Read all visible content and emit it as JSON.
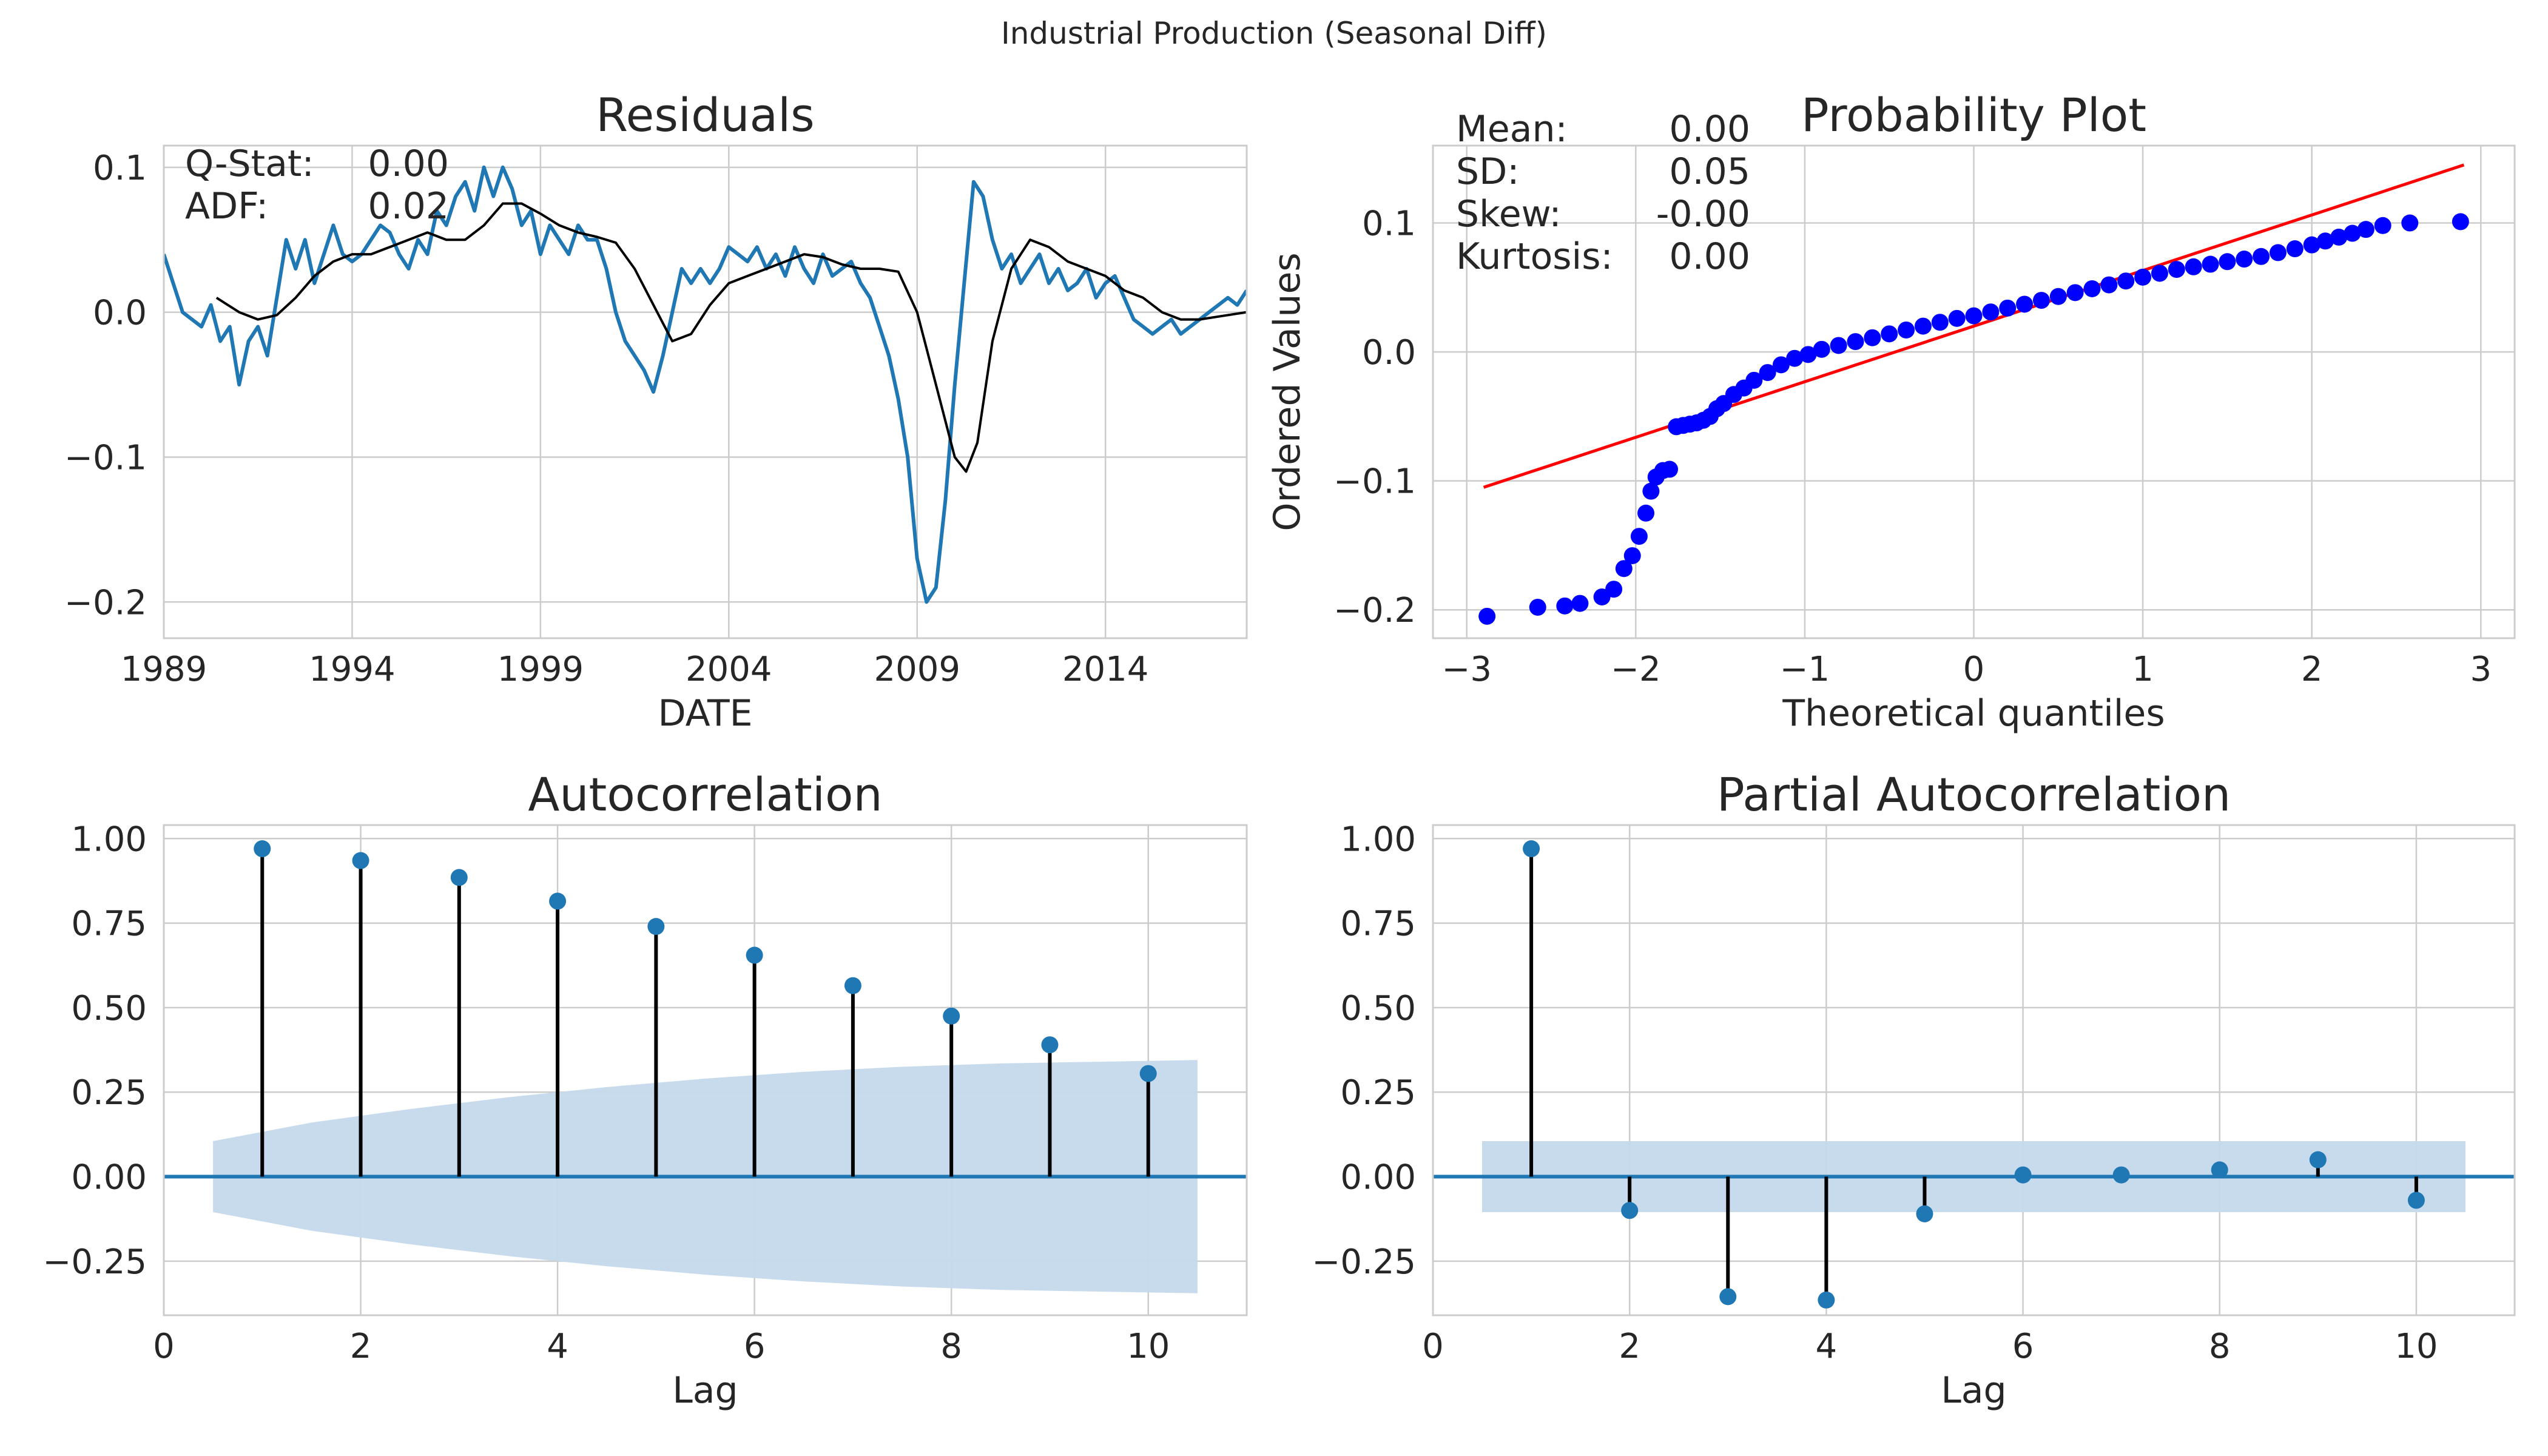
{
  "suptitle": "Industrial Production (Seasonal Diff)",
  "chart_data": [
    {
      "id": "residuals",
      "type": "line",
      "title": "Residuals",
      "xlabel": "DATE",
      "ylabel": "",
      "xlim": [
        1989.0,
        2017.75
      ],
      "ylim": [
        -0.225,
        0.115
      ],
      "xticks": [
        1989,
        1994,
        1999,
        2004,
        2009,
        2014
      ],
      "xticklabels": [
        "1989",
        "1994",
        "1999",
        "2004",
        "2009",
        "2014"
      ],
      "yticks": [
        -0.2,
        -0.1,
        0.0,
        0.1
      ],
      "yticklabels": [
        "−0.2",
        "−0.1",
        "0.0",
        "0.1"
      ],
      "grid": true,
      "stats": [
        {
          "label": "Q-Stat:",
          "value": "0.00"
        },
        {
          "label": "ADF:",
          "value": "0.02"
        }
      ],
      "series": [
        {
          "role": "residuals",
          "color": "#1f77b4",
          "x": [
            1989.0,
            1989.25,
            1989.5,
            1989.75,
            1990.0,
            1990.25,
            1990.5,
            1990.75,
            1991.0,
            1991.25,
            1991.5,
            1991.75,
            1992.0,
            1992.25,
            1992.5,
            1992.75,
            1993.0,
            1993.25,
            1993.5,
            1993.75,
            1994.0,
            1994.25,
            1994.5,
            1994.75,
            1995.0,
            1995.25,
            1995.5,
            1995.75,
            1996.0,
            1996.25,
            1996.5,
            1996.75,
            1997.0,
            1997.25,
            1997.5,
            1997.75,
            1998.0,
            1998.25,
            1998.5,
            1998.75,
            1999.0,
            1999.25,
            1999.5,
            1999.75,
            2000.0,
            2000.25,
            2000.5,
            2000.75,
            2001.0,
            2001.25,
            2001.5,
            2001.75,
            2002.0,
            2002.25,
            2002.5,
            2002.75,
            2003.0,
            2003.25,
            2003.5,
            2003.75,
            2004.0,
            2004.25,
            2004.5,
            2004.75,
            2005.0,
            2005.25,
            2005.5,
            2005.75,
            2006.0,
            2006.25,
            2006.5,
            2006.75,
            2007.0,
            2007.25,
            2007.5,
            2007.75,
            2008.0,
            2008.25,
            2008.5,
            2008.75,
            2009.0,
            2009.25,
            2009.5,
            2009.75,
            2010.0,
            2010.25,
            2010.5,
            2010.75,
            2011.0,
            2011.25,
            2011.5,
            2011.75,
            2012.0,
            2012.25,
            2012.5,
            2012.75,
            2013.0,
            2013.25,
            2013.5,
            2013.75,
            2014.0,
            2014.25,
            2014.5,
            2014.75,
            2015.0,
            2015.25,
            2015.5,
            2015.75,
            2016.0,
            2016.25,
            2016.5,
            2016.75,
            2017.0,
            2017.25,
            2017.5,
            2017.75
          ],
          "y": [
            0.04,
            0.02,
            0.0,
            -0.005,
            -0.01,
            0.005,
            -0.02,
            -0.01,
            -0.05,
            -0.02,
            -0.01,
            -0.03,
            0.01,
            0.05,
            0.03,
            0.05,
            0.02,
            0.04,
            0.06,
            0.04,
            0.035,
            0.04,
            0.05,
            0.06,
            0.055,
            0.04,
            0.03,
            0.05,
            0.04,
            0.07,
            0.06,
            0.08,
            0.09,
            0.07,
            0.1,
            0.08,
            0.1,
            0.085,
            0.06,
            0.07,
            0.04,
            0.06,
            0.05,
            0.04,
            0.06,
            0.05,
            0.05,
            0.03,
            0.0,
            -0.02,
            -0.03,
            -0.04,
            -0.055,
            -0.03,
            0.0,
            0.03,
            0.02,
            0.03,
            0.02,
            0.03,
            0.045,
            0.04,
            0.035,
            0.045,
            0.03,
            0.04,
            0.025,
            0.045,
            0.03,
            0.02,
            0.04,
            0.025,
            0.03,
            0.035,
            0.02,
            0.01,
            -0.01,
            -0.03,
            -0.06,
            -0.1,
            -0.17,
            -0.2,
            -0.19,
            -0.13,
            -0.05,
            0.02,
            0.09,
            0.08,
            0.05,
            0.03,
            0.04,
            0.02,
            0.03,
            0.04,
            0.02,
            0.03,
            0.015,
            0.02,
            0.03,
            0.01,
            0.02,
            0.025,
            0.01,
            -0.005,
            -0.01,
            -0.015,
            -0.01,
            -0.005,
            -0.015,
            -0.01,
            -0.005,
            0.0,
            0.005,
            0.01,
            0.005,
            0.015
          ]
        },
        {
          "role": "rolling-mean",
          "color": "#000000",
          "x": [
            1990.4,
            1991.0,
            1991.5,
            1992.0,
            1992.5,
            1993.0,
            1993.5,
            1994.0,
            1994.5,
            1995.0,
            1995.5,
            1996.0,
            1996.5,
            1997.0,
            1997.5,
            1998.0,
            1998.5,
            1999.0,
            1999.5,
            2000.0,
            2000.5,
            2001.0,
            2001.5,
            2002.0,
            2002.5,
            2003.0,
            2003.5,
            2004.0,
            2004.5,
            2005.0,
            2005.5,
            2006.0,
            2006.5,
            2007.0,
            2007.5,
            2008.0,
            2008.5,
            2009.0,
            2009.5,
            2010.0,
            2010.3,
            2010.6,
            2011.0,
            2011.5,
            2012.0,
            2012.5,
            2013.0,
            2013.5,
            2014.0,
            2014.5,
            2015.0,
            2015.5,
            2016.0,
            2016.5,
            2017.0,
            2017.75
          ],
          "y": [
            0.01,
            0.0,
            -0.005,
            -0.002,
            0.01,
            0.025,
            0.035,
            0.04,
            0.04,
            0.045,
            0.05,
            0.055,
            0.05,
            0.05,
            0.06,
            0.075,
            0.075,
            0.068,
            0.06,
            0.055,
            0.052,
            0.048,
            0.03,
            0.005,
            -0.02,
            -0.015,
            0.005,
            0.02,
            0.025,
            0.03,
            0.035,
            0.04,
            0.038,
            0.033,
            0.03,
            0.03,
            0.028,
            0.0,
            -0.05,
            -0.1,
            -0.11,
            -0.09,
            -0.02,
            0.03,
            0.05,
            0.045,
            0.035,
            0.03,
            0.025,
            0.015,
            0.01,
            0.0,
            -0.005,
            -0.005,
            -0.003,
            0.0
          ]
        }
      ]
    },
    {
      "id": "probability-plot",
      "type": "scatter",
      "title": "Probability Plot",
      "xlabel": "Theoretical quantiles",
      "ylabel": "Ordered Values",
      "xlim": [
        -3.2,
        3.2
      ],
      "ylim": [
        -0.222,
        0.16
      ],
      "xticks": [
        -3,
        -2,
        -1,
        0,
        1,
        2,
        3
      ],
      "xticklabels": [
        "−3",
        "−2",
        "−1",
        "0",
        "1",
        "2",
        "3"
      ],
      "yticks": [
        -0.2,
        -0.1,
        0.0,
        0.1
      ],
      "yticklabels": [
        "−0.2",
        "−0.1",
        "0.0",
        "0.1"
      ],
      "grid": true,
      "stats": [
        {
          "label": "Mean:",
          "value": "0.00"
        },
        {
          "label": "SD:",
          "value": "0.05"
        },
        {
          "label": "Skew:",
          "value": "-0.00"
        },
        {
          "label": "Kurtosis:",
          "value": "0.00"
        }
      ],
      "points_color": "#0000ff",
      "line_color": "#ff0000",
      "fit_line": {
        "x": [
          -2.9,
          2.9
        ],
        "y": [
          -0.105,
          0.145
        ]
      },
      "x": [
        -2.88,
        -2.58,
        -2.42,
        -2.33,
        -2.2,
        -2.13,
        -2.07,
        -2.02,
        -1.98,
        -1.94,
        -1.91,
        -1.88,
        -1.84,
        -1.8,
        -1.76,
        -1.72,
        -1.68,
        -1.64,
        -1.6,
        -1.56,
        -1.52,
        -1.48,
        -1.42,
        -1.36,
        -1.3,
        -1.22,
        -1.14,
        -1.06,
        -0.98,
        -0.9,
        -0.8,
        -0.7,
        -0.6,
        -0.5,
        -0.4,
        -0.3,
        -0.2,
        -0.1,
        0.0,
        0.1,
        0.2,
        0.3,
        0.4,
        0.5,
        0.6,
        0.7,
        0.8,
        0.9,
        1.0,
        1.1,
        1.2,
        1.3,
        1.4,
        1.5,
        1.6,
        1.7,
        1.8,
        1.9,
        2.0,
        2.08,
        2.16,
        2.24,
        2.32,
        2.42,
        2.58,
        2.88
      ],
      "y": [
        -0.205,
        -0.198,
        -0.197,
        -0.195,
        -0.19,
        -0.184,
        -0.168,
        -0.158,
        -0.143,
        -0.125,
        -0.108,
        -0.097,
        -0.092,
        -0.091,
        -0.058,
        -0.057,
        -0.056,
        -0.055,
        -0.053,
        -0.05,
        -0.044,
        -0.04,
        -0.033,
        -0.028,
        -0.022,
        -0.016,
        -0.01,
        -0.005,
        -0.002,
        0.002,
        0.005,
        0.008,
        0.011,
        0.014,
        0.017,
        0.02,
        0.023,
        0.026,
        0.028,
        0.031,
        0.034,
        0.037,
        0.04,
        0.043,
        0.046,
        0.049,
        0.052,
        0.055,
        0.058,
        0.061,
        0.064,
        0.066,
        0.068,
        0.07,
        0.072,
        0.074,
        0.077,
        0.08,
        0.083,
        0.086,
        0.089,
        0.092,
        0.095,
        0.098,
        0.1,
        0.101
      ]
    },
    {
      "id": "autocorrelation",
      "type": "stem",
      "title": "Autocorrelation",
      "xlabel": "Lag",
      "ylabel": "",
      "xlim": [
        0,
        11
      ],
      "ylim": [
        -0.41,
        1.04
      ],
      "xticks": [
        0,
        2,
        4,
        6,
        8,
        10
      ],
      "xticklabels": [
        "0",
        "2",
        "4",
        "6",
        "8",
        "10"
      ],
      "yticks": [
        -0.25,
        0.0,
        0.25,
        0.5,
        0.75,
        1.0
      ],
      "yticklabels": [
        "−0.25",
        "0.00",
        "0.25",
        "0.50",
        "0.75",
        "1.00"
      ],
      "grid": true,
      "lags": [
        1,
        2,
        3,
        4,
        5,
        6,
        7,
        8,
        9,
        10
      ],
      "values": [
        0.97,
        0.935,
        0.885,
        0.815,
        0.74,
        0.655,
        0.565,
        0.475,
        0.39,
        0.305
      ],
      "confidence_band": {
        "x": [
          0.5,
          1.5,
          2.5,
          3.5,
          4.5,
          5.5,
          6.5,
          7.5,
          8.5,
          9.5,
          10.5
        ],
        "upper": [
          0.105,
          0.16,
          0.2,
          0.235,
          0.265,
          0.29,
          0.31,
          0.325,
          0.335,
          0.34,
          0.345
        ]
      },
      "marker_color": "#1f77b4",
      "band_color": "#c4d9ec"
    },
    {
      "id": "partial-autocorrelation",
      "type": "stem",
      "title": "Partial Autocorrelation",
      "xlabel": "Lag",
      "ylabel": "",
      "xlim": [
        0,
        11
      ],
      "ylim": [
        -0.41,
        1.04
      ],
      "xticks": [
        0,
        2,
        4,
        6,
        8,
        10
      ],
      "xticklabels": [
        "0",
        "2",
        "4",
        "6",
        "8",
        "10"
      ],
      "yticks": [
        -0.25,
        0.0,
        0.25,
        0.5,
        0.75,
        1.0
      ],
      "yticklabels": [
        "−0.25",
        "0.00",
        "0.25",
        "0.50",
        "0.75",
        "1.00"
      ],
      "grid": true,
      "lags": [
        1,
        2,
        3,
        4,
        5,
        6,
        7,
        8,
        9,
        10
      ],
      "values": [
        0.97,
        -0.1,
        -0.355,
        -0.365,
        -0.11,
        0.005,
        0.005,
        0.02,
        0.05,
        -0.07
      ],
      "confidence_band": {
        "x": [
          0.5,
          10.5
        ],
        "upper": [
          0.105,
          0.105
        ]
      },
      "marker_color": "#1f77b4",
      "band_color": "#c4d9ec"
    }
  ]
}
